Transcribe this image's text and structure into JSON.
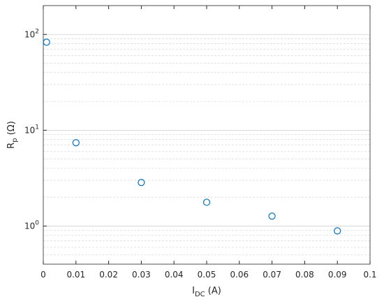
{
  "chart_data": {
    "type": "scatter",
    "xlabel": {
      "main": "I",
      "sub": "DC",
      "rest": " (A)"
    },
    "ylabel": {
      "main": "R",
      "sub": "p",
      "rest": " (Ω)"
    },
    "x": [
      0.001,
      0.01,
      0.03,
      0.05,
      0.07,
      0.09
    ],
    "values": [
      83,
      7.4,
      2.85,
      1.77,
      1.27,
      0.89
    ],
    "color": "#0072bd",
    "xlim": [
      0,
      0.1
    ],
    "xticks": [
      0,
      0.01,
      0.02,
      0.03,
      0.04,
      0.05,
      0.06,
      0.07,
      0.08,
      0.09,
      0.1
    ],
    "ylim": [
      0.4,
      200
    ],
    "yscale": "log",
    "yticks": [
      {
        "value": 1,
        "label": "10",
        "exponent": "0"
      },
      {
        "value": 10,
        "label": "10",
        "exponent": "1"
      },
      {
        "value": 100,
        "label": "10",
        "exponent": "2"
      }
    ],
    "yminorticks": [
      0.4,
      0.5,
      0.6,
      0.7,
      0.8,
      0.9,
      2,
      3,
      4,
      5,
      6,
      7,
      8,
      9,
      20,
      30,
      40,
      50,
      60,
      70,
      80,
      90,
      200
    ],
    "grid": true
  }
}
